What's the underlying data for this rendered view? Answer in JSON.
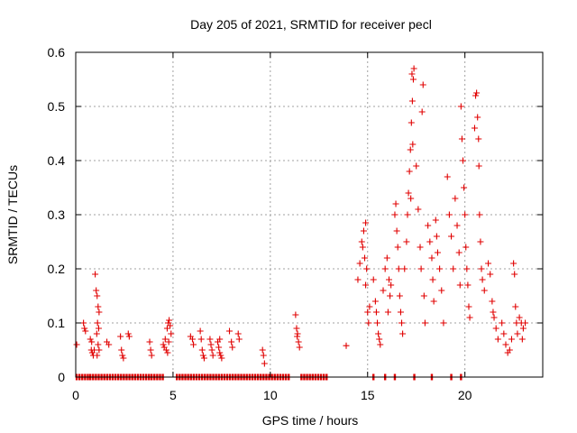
{
  "chart_data": {
    "type": "scatter",
    "title": "Day 205 of 2021, SRMTID for receiver pecl",
    "xlabel": "GPS time / hours",
    "ylabel": "SRMTID / TECUs",
    "xlim": [
      0,
      24
    ],
    "ylim": [
      0,
      0.6
    ],
    "xticks": [
      0,
      5,
      10,
      15,
      20
    ],
    "yticks": [
      0,
      0.1,
      0.2,
      0.3,
      0.4,
      0.5,
      0.6
    ],
    "grid": true,
    "marker": "+",
    "color": "#e00000",
    "series": [
      {
        "name": "pecl",
        "points": [
          [
            0.05,
            0.06
          ],
          [
            0.4,
            0.1
          ],
          [
            0.45,
            0.09
          ],
          [
            0.5,
            0.085
          ],
          [
            0.75,
            0.07
          ],
          [
            0.8,
            0.05
          ],
          [
            0.85,
            0.045
          ],
          [
            0.9,
            0.04
          ],
          [
            0.95,
            0.05
          ],
          [
            0.82,
            0.065
          ],
          [
            1.0,
            0.19
          ],
          [
            1.05,
            0.16
          ],
          [
            1.1,
            0.15
          ],
          [
            1.15,
            0.13
          ],
          [
            1.2,
            0.12
          ],
          [
            1.12,
            0.1
          ],
          [
            1.18,
            0.09
          ],
          [
            1.08,
            0.08
          ],
          [
            1.15,
            0.06
          ],
          [
            1.2,
            0.05
          ],
          [
            1.1,
            0.04
          ],
          [
            1.6,
            0.065
          ],
          [
            1.7,
            0.06
          ],
          [
            2.3,
            0.075
          ],
          [
            2.35,
            0.05
          ],
          [
            2.4,
            0.04
          ],
          [
            2.45,
            0.035
          ],
          [
            2.7,
            0.08
          ],
          [
            2.75,
            0.075
          ],
          [
            3.8,
            0.065
          ],
          [
            3.85,
            0.05
          ],
          [
            3.9,
            0.04
          ],
          [
            4.5,
            0.06
          ],
          [
            4.55,
            0.055
          ],
          [
            4.6,
            0.07
          ],
          [
            4.65,
            0.05
          ],
          [
            4.7,
            0.09
          ],
          [
            4.75,
            0.1
          ],
          [
            4.8,
            0.105
          ],
          [
            4.85,
            0.095
          ],
          [
            4.9,
            0.08
          ],
          [
            4.78,
            0.065
          ],
          [
            4.72,
            0.045
          ],
          [
            5.9,
            0.075
          ],
          [
            6.0,
            0.07
          ],
          [
            6.05,
            0.06
          ],
          [
            6.4,
            0.085
          ],
          [
            6.45,
            0.07
          ],
          [
            6.5,
            0.05
          ],
          [
            6.55,
            0.04
          ],
          [
            6.6,
            0.035
          ],
          [
            6.9,
            0.07
          ],
          [
            6.95,
            0.06
          ],
          [
            7.0,
            0.05
          ],
          [
            7.05,
            0.04
          ],
          [
            7.3,
            0.065
          ],
          [
            7.35,
            0.055
          ],
          [
            7.4,
            0.045
          ],
          [
            7.45,
            0.04
          ],
          [
            7.5,
            0.035
          ],
          [
            7.4,
            0.07
          ],
          [
            7.9,
            0.085
          ],
          [
            8.0,
            0.065
          ],
          [
            8.05,
            0.055
          ],
          [
            8.35,
            0.08
          ],
          [
            8.4,
            0.07
          ],
          [
            9.6,
            0.05
          ],
          [
            9.65,
            0.04
          ],
          [
            9.7,
            0.025
          ],
          [
            11.3,
            0.115
          ],
          [
            11.35,
            0.09
          ],
          [
            11.4,
            0.08
          ],
          [
            11.45,
            0.065
          ],
          [
            11.5,
            0.055
          ],
          [
            11.38,
            0.075
          ],
          [
            13.9,
            0.058
          ],
          [
            14.5,
            0.18
          ],
          [
            14.6,
            0.21
          ],
          [
            14.7,
            0.25
          ],
          [
            14.8,
            0.27
          ],
          [
            14.9,
            0.285
          ],
          [
            14.75,
            0.24
          ],
          [
            14.85,
            0.22
          ],
          [
            14.95,
            0.2
          ],
          [
            15.0,
            0.12
          ],
          [
            15.05,
            0.1
          ],
          [
            15.1,
            0.13
          ],
          [
            14.9,
            0.17
          ],
          [
            15.3,
            0.18
          ],
          [
            15.4,
            0.14
          ],
          [
            15.5,
            0.1
          ],
          [
            15.55,
            0.08
          ],
          [
            15.6,
            0.07
          ],
          [
            15.65,
            0.06
          ],
          [
            15.45,
            0.12
          ],
          [
            15.8,
            0.16
          ],
          [
            15.9,
            0.2
          ],
          [
            16.0,
            0.22
          ],
          [
            16.1,
            0.18
          ],
          [
            16.15,
            0.15
          ],
          [
            16.05,
            0.12
          ],
          [
            16.2,
            0.17
          ],
          [
            16.4,
            0.3
          ],
          [
            16.45,
            0.32
          ],
          [
            16.5,
            0.27
          ],
          [
            16.55,
            0.24
          ],
          [
            16.6,
            0.2
          ],
          [
            16.65,
            0.15
          ],
          [
            16.7,
            0.12
          ],
          [
            16.75,
            0.1
          ],
          [
            16.8,
            0.08
          ],
          [
            16.9,
            0.2
          ],
          [
            17.0,
            0.25
          ],
          [
            17.05,
            0.3
          ],
          [
            17.1,
            0.34
          ],
          [
            17.15,
            0.38
          ],
          [
            17.2,
            0.42
          ],
          [
            17.25,
            0.47
          ],
          [
            17.3,
            0.51
          ],
          [
            17.35,
            0.55
          ],
          [
            17.38,
            0.57
          ],
          [
            17.28,
            0.56
          ],
          [
            17.32,
            0.43
          ],
          [
            17.22,
            0.33
          ],
          [
            17.5,
            0.39
          ],
          [
            17.6,
            0.31
          ],
          [
            17.7,
            0.24
          ],
          [
            17.75,
            0.2
          ],
          [
            17.8,
            0.49
          ],
          [
            17.85,
            0.54
          ],
          [
            17.9,
            0.15
          ],
          [
            17.95,
            0.1
          ],
          [
            18.1,
            0.28
          ],
          [
            18.2,
            0.25
          ],
          [
            18.3,
            0.22
          ],
          [
            18.35,
            0.18
          ],
          [
            18.4,
            0.14
          ],
          [
            18.5,
            0.29
          ],
          [
            18.55,
            0.26
          ],
          [
            18.6,
            0.23
          ],
          [
            18.7,
            0.2
          ],
          [
            18.8,
            0.16
          ],
          [
            18.9,
            0.1
          ],
          [
            19.1,
            0.37
          ],
          [
            19.2,
            0.3
          ],
          [
            19.3,
            0.26
          ],
          [
            19.4,
            0.2
          ],
          [
            19.5,
            0.33
          ],
          [
            19.6,
            0.28
          ],
          [
            19.7,
            0.23
          ],
          [
            19.75,
            0.17
          ],
          [
            19.8,
            0.5
          ],
          [
            19.85,
            0.44
          ],
          [
            19.9,
            0.4
          ],
          [
            19.95,
            0.35
          ],
          [
            20.0,
            0.3
          ],
          [
            20.05,
            0.24
          ],
          [
            20.1,
            0.2
          ],
          [
            20.15,
            0.17
          ],
          [
            20.2,
            0.13
          ],
          [
            20.25,
            0.11
          ],
          [
            20.5,
            0.46
          ],
          [
            20.55,
            0.52
          ],
          [
            20.6,
            0.525
          ],
          [
            20.65,
            0.48
          ],
          [
            20.7,
            0.44
          ],
          [
            20.72,
            0.39
          ],
          [
            20.75,
            0.3
          ],
          [
            20.8,
            0.25
          ],
          [
            20.85,
            0.2
          ],
          [
            20.9,
            0.18
          ],
          [
            21.0,
            0.16
          ],
          [
            21.2,
            0.21
          ],
          [
            21.3,
            0.19
          ],
          [
            21.4,
            0.14
          ],
          [
            21.5,
            0.11
          ],
          [
            21.6,
            0.09
          ],
          [
            21.7,
            0.07
          ],
          [
            21.45,
            0.12
          ],
          [
            21.9,
            0.1
          ],
          [
            22.0,
            0.08
          ],
          [
            22.1,
            0.06
          ],
          [
            22.2,
            0.045
          ],
          [
            22.3,
            0.05
          ],
          [
            22.4,
            0.07
          ],
          [
            22.5,
            0.21
          ],
          [
            22.55,
            0.19
          ],
          [
            22.6,
            0.13
          ],
          [
            22.65,
            0.1
          ],
          [
            22.7,
            0.08
          ],
          [
            22.8,
            0.11
          ],
          [
            22.9,
            0.1
          ],
          [
            23.0,
            0.09
          ],
          [
            23.1,
            0.1
          ],
          [
            22.95,
            0.07
          ]
        ]
      }
    ],
    "zero_segments": [
      [
        0.05,
        0.65
      ],
      [
        0.75,
        3.8
      ],
      [
        3.9,
        4.55
      ],
      [
        5.2,
        11.0
      ],
      [
        11.6,
        13.0
      ],
      [
        15.3,
        15.4
      ],
      [
        15.9,
        16.0
      ],
      [
        16.4,
        16.5
      ],
      [
        17.4,
        17.5
      ],
      [
        18.3,
        18.4
      ],
      [
        19.3,
        19.4
      ],
      [
        19.8,
        19.9
      ]
    ]
  }
}
